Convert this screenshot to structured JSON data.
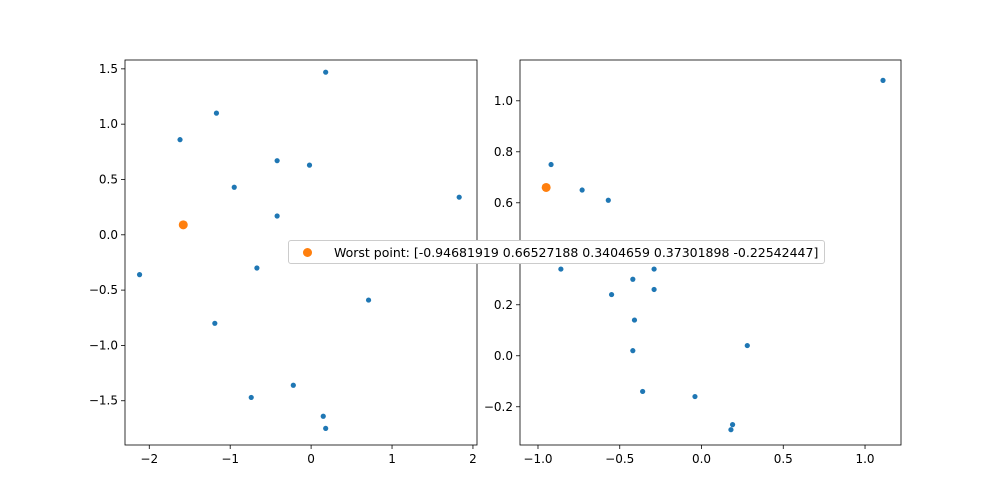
{
  "chart_data": [
    {
      "type": "scatter",
      "xlim": [
        -2.3,
        2.05
      ],
      "ylim": [
        -1.9,
        1.58
      ],
      "x_ticks": [
        -2,
        -1,
        0,
        1,
        2
      ],
      "y_ticks": [
        -1.5,
        -1.0,
        -0.5,
        0.0,
        0.5,
        1.0,
        1.5
      ],
      "x_tick_labels": [
        "−2",
        "−1",
        "0",
        "1",
        "2"
      ],
      "y_tick_labels": [
        "−1.5",
        "−1.0",
        "−0.5",
        "0.0",
        "0.5",
        "1.0",
        "1.5"
      ],
      "series": [
        {
          "color": "#1f77b4",
          "x": [
            0.18,
            -1.17,
            -1.62,
            -0.42,
            -0.02,
            -0.95,
            1.83,
            -0.42,
            -2.12,
            -0.67,
            0.71,
            -1.19,
            -0.22,
            -0.74,
            0.15,
            0.18
          ],
          "y": [
            1.47,
            1.1,
            0.86,
            0.67,
            0.63,
            0.43,
            0.34,
            0.17,
            -0.36,
            -0.3,
            -0.59,
            -0.8,
            -1.36,
            -1.47,
            -1.64,
            -1.75
          ]
        },
        {
          "color": "#ff7f0e",
          "x": [
            -1.58
          ],
          "y": [
            0.09
          ]
        }
      ]
    },
    {
      "type": "scatter",
      "xlim": [
        -1.11,
        1.22
      ],
      "ylim": [
        -0.35,
        1.16
      ],
      "x_ticks": [
        -1.0,
        -0.5,
        0.0,
        0.5,
        1.0
      ],
      "y_ticks": [
        -0.2,
        0.0,
        0.2,
        0.4,
        0.6,
        0.8,
        1.0
      ],
      "x_tick_labels": [
        "−1.0",
        "−0.5",
        "0.0",
        "0.5",
        "1.0"
      ],
      "y_tick_labels": [
        "−0.2",
        "0.0",
        "0.2",
        "0.4",
        "0.6",
        "0.8",
        "1.0"
      ],
      "series": [
        {
          "color": "#1f77b4",
          "x": [
            1.11,
            -0.92,
            -0.73,
            -0.57,
            -0.86,
            -0.42,
            -0.29,
            -0.55,
            -0.29,
            -0.41,
            -0.42,
            0.28,
            -0.36,
            -0.04,
            0.19,
            0.18
          ],
          "y": [
            1.08,
            0.75,
            0.65,
            0.61,
            0.34,
            0.3,
            0.34,
            0.24,
            0.26,
            0.14,
            0.02,
            0.04,
            -0.14,
            -0.16,
            -0.27,
            -0.29
          ]
        },
        {
          "color": "#ff7f0e",
          "x": [
            -0.95
          ],
          "y": [
            0.66
          ]
        }
      ]
    }
  ],
  "legend": {
    "label": "Worst point: [-0.94681919  0.66527188  0.3404659   0.37301898 -0.22542447]",
    "color": "#ff7f0e"
  }
}
